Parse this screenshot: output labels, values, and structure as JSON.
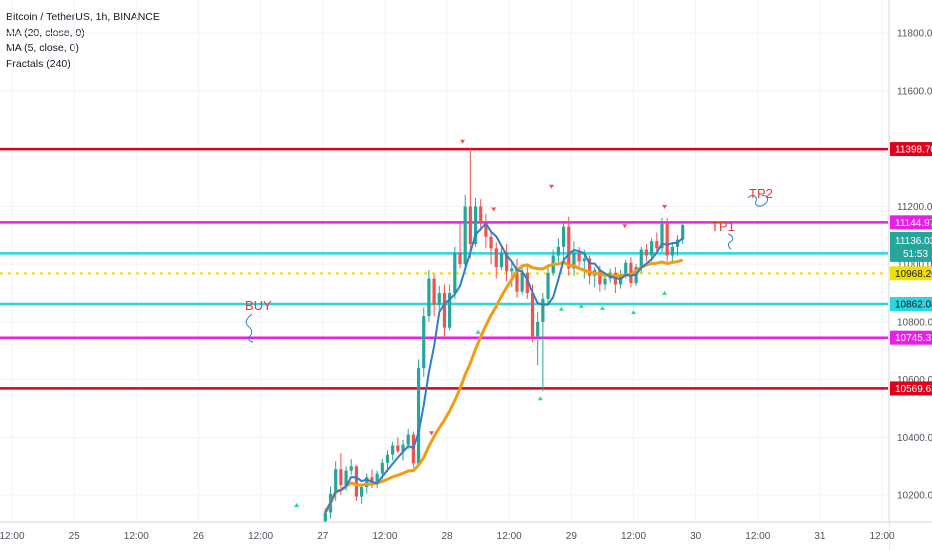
{
  "legend": {
    "symbol": "Bitcoin / TetherUS, 1h, BINANCE",
    "ma20": "MA (20, close, 0)",
    "ma5": "MA (5, close, 0)",
    "fractals": "Fractals (240)"
  },
  "annotations": {
    "buy": "BUY",
    "tp1": "TP1",
    "tp2": "TP2"
  },
  "chart_data": {
    "type": "candlestick",
    "ylim": [
      10107,
      11915
    ],
    "y_ticks": [
      10200,
      10400,
      10600,
      10800,
      11000,
      11200,
      11400,
      11600,
      11800
    ],
    "y_tick_labels": [
      "10200.00",
      "10400.00",
      "10600.00",
      "10800.00",
      "11000.00",
      "11200.00",
      "11400.00",
      "11600.00",
      "11800.00"
    ],
    "x_ticks": [
      {
        "day": 24.5,
        "label": "12:00"
      },
      {
        "day": 25,
        "label": "25"
      },
      {
        "day": 25.5,
        "label": "12:00"
      },
      {
        "day": 26,
        "label": "26"
      },
      {
        "day": 26.5,
        "label": "12:00"
      },
      {
        "day": 27,
        "label": "27"
      },
      {
        "day": 27.5,
        "label": "12:00"
      },
      {
        "day": 28,
        "label": "28"
      },
      {
        "day": 28.5,
        "label": "12:00"
      },
      {
        "day": 29,
        "label": "29"
      },
      {
        "day": 29.5,
        "label": "12:00"
      },
      {
        "day": 30,
        "label": "30"
      },
      {
        "day": 30.5,
        "label": "12:00"
      },
      {
        "day": 31,
        "label": "31"
      },
      {
        "day": 31.5,
        "label": "12:00"
      }
    ],
    "levels": [
      {
        "value": 11398.7,
        "label": "11398.70",
        "color": "#e0001b",
        "style": "solid"
      },
      {
        "value": 11144.97,
        "label": "11144.97",
        "color": "#e91ee9",
        "style": "solid"
      },
      {
        "value": 11037.35,
        "label": "11037.35",
        "color": "#29d7e0",
        "style": "solid"
      },
      {
        "value": 10968.26,
        "label": "10968.26",
        "color": "#f0e000",
        "style": "dotted"
      },
      {
        "value": 10862.04,
        "label": "10862.04",
        "color": "#29d7e0",
        "style": "solid"
      },
      {
        "value": 10745.37,
        "label": "10745.37",
        "color": "#e91ee9",
        "style": "solid"
      },
      {
        "value": 10569.63,
        "label": "10569.63",
        "color": "#e0001b",
        "style": "solid"
      }
    ],
    "last_price": {
      "value": 11136.03,
      "label": "11136.03",
      "countdown": "51:53",
      "color": "#26a69a"
    },
    "candles_start_day": 27.0,
    "candle_interval_hours": 1,
    "ohlc": [
      [
        10052,
        10155,
        10030,
        10140
      ],
      [
        10140,
        10230,
        10120,
        10205
      ],
      [
        10205,
        10318,
        10180,
        10290
      ],
      [
        10290,
        10345,
        10200,
        10235
      ],
      [
        10235,
        10300,
        10215,
        10285
      ],
      [
        10285,
        10325,
        10270,
        10300
      ],
      [
        10300,
        10305,
        10180,
        10195
      ],
      [
        10195,
        10235,
        10170,
        10228
      ],
      [
        10228,
        10275,
        10205,
        10262
      ],
      [
        10262,
        10290,
        10225,
        10245
      ],
      [
        10245,
        10285,
        10225,
        10275
      ],
      [
        10275,
        10325,
        10255,
        10312
      ],
      [
        10312,
        10355,
        10280,
        10340
      ],
      [
        10340,
        10385,
        10320,
        10372
      ],
      [
        10372,
        10400,
        10345,
        10352
      ],
      [
        10352,
        10392,
        10320,
        10375
      ],
      [
        10375,
        10430,
        10360,
        10410
      ],
      [
        10410,
        10420,
        10295,
        10310
      ],
      [
        10310,
        10670,
        10305,
        10640
      ],
      [
        10640,
        10850,
        10610,
        10820
      ],
      [
        10820,
        10980,
        10800,
        10950
      ],
      [
        10950,
        10965,
        10820,
        10860
      ],
      [
        10860,
        10925,
        10840,
        10900
      ],
      [
        10900,
        10930,
        10740,
        10780
      ],
      [
        10780,
        10930,
        10770,
        10900
      ],
      [
        10900,
        11060,
        10880,
        11040
      ],
      [
        11040,
        11150,
        10985,
        11000
      ],
      [
        11000,
        11240,
        10980,
        11200
      ],
      [
        11200,
        11400,
        11020,
        11070
      ],
      [
        11070,
        11230,
        11060,
        11200
      ],
      [
        11200,
        11225,
        11115,
        11140
      ],
      [
        11140,
        11175,
        11055,
        11095
      ],
      [
        11095,
        11110,
        11000,
        11055
      ],
      [
        11055,
        11075,
        10950,
        10990
      ],
      [
        10990,
        11060,
        10980,
        11040
      ],
      [
        11040,
        11070,
        10940,
        10975
      ],
      [
        10975,
        11010,
        10920,
        10985
      ],
      [
        10985,
        11020,
        10885,
        10905
      ],
      [
        10905,
        10990,
        10895,
        10970
      ],
      [
        10970,
        11000,
        10880,
        10900
      ],
      [
        10900,
        10930,
        10730,
        10750
      ],
      [
        10750,
        10835,
        10650,
        10800
      ],
      [
        10800,
        10900,
        10560,
        10880
      ],
      [
        10880,
        11000,
        10860,
        10970
      ],
      [
        10970,
        11050,
        10960,
        11030
      ],
      [
        11030,
        11090,
        11000,
        11060
      ],
      [
        11060,
        11145,
        11010,
        11130
      ],
      [
        11130,
        11165,
        10960,
        10985
      ],
      [
        10985,
        11080,
        10960,
        11040
      ],
      [
        11040,
        11060,
        10985,
        11010
      ],
      [
        11010,
        11050,
        10950,
        11020
      ],
      [
        11020,
        11030,
        10930,
        10960
      ],
      [
        10960,
        10990,
        10920,
        10980
      ],
      [
        10980,
        10995,
        10905,
        10930
      ],
      [
        10930,
        10970,
        10910,
        10950
      ],
      [
        10950,
        10985,
        10935,
        10970
      ],
      [
        10970,
        10990,
        10900,
        10930
      ],
      [
        10930,
        10980,
        10915,
        10960
      ],
      [
        10960,
        11015,
        10950,
        11005
      ],
      [
        11005,
        11025,
        10920,
        10935
      ],
      [
        10935,
        11000,
        10925,
        10990
      ],
      [
        10990,
        11060,
        10970,
        11050
      ],
      [
        11050,
        11070,
        11010,
        11030
      ],
      [
        11030,
        11090,
        11010,
        11080
      ],
      [
        11080,
        11110,
        11040,
        11055
      ],
      [
        11055,
        11160,
        11040,
        11140
      ],
      [
        11140,
        11160,
        11010,
        11030
      ],
      [
        11030,
        11075,
        11000,
        11060
      ],
      [
        11060,
        11100,
        11030,
        11085
      ],
      [
        11085,
        11145,
        11070,
        11136
      ]
    ],
    "ma5_color": "#2e7ec9",
    "ma20_color": "#f39c12",
    "fractals_up": [
      {
        "day": 27.875,
        "value": 10390
      },
      {
        "day": 28.125,
        "value": 11400
      },
      {
        "day": 28.375,
        "value": 11165
      },
      {
        "day": 28.84,
        "value": 11244
      },
      {
        "day": 29.43,
        "value": 11107
      },
      {
        "day": 29.75,
        "value": 11174
      }
    ],
    "fractals_down": [
      {
        "day": 28.25,
        "value": 10790
      },
      {
        "day": 28.75,
        "value": 10560
      },
      {
        "day": 28.92,
        "value": 10870
      },
      {
        "day": 29.08,
        "value": 10880
      },
      {
        "day": 29.25,
        "value": 10873
      },
      {
        "day": 29.5,
        "value": 10858
      },
      {
        "day": 29.75,
        "value": 10925
      },
      {
        "day": 26.79,
        "value": 10190
      }
    ],
    "grid": true,
    "theme": "light"
  }
}
